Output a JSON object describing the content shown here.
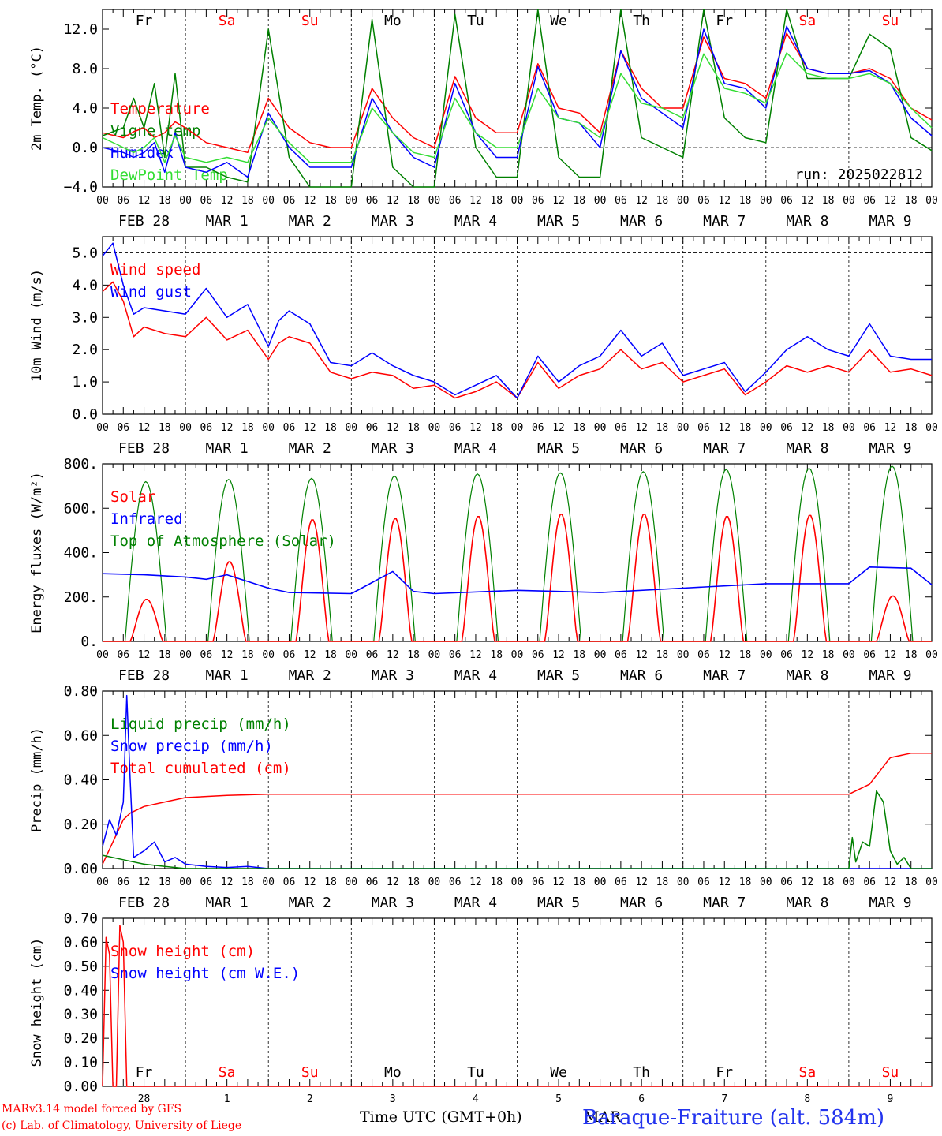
{
  "colors": {
    "red": "#ff0000",
    "blue": "#0000ff",
    "green": "#008000",
    "lightgreen": "#33dd33",
    "black": "#000000"
  },
  "x_axis": {
    "hour_ticks": [
      "00",
      "06",
      "12",
      "18"
    ],
    "date_labels": [
      "FEB 28",
      "MAR  1",
      "MAR  2",
      "MAR  3",
      "MAR  4",
      "MAR  5",
      "MAR  6",
      "MAR  7",
      "MAR  8",
      "MAR  9"
    ],
    "last_tick": "00",
    "days_of_week": [
      "Fr",
      "Sa",
      "Su",
      "Mo",
      "Tu",
      "We",
      "Th",
      "Fr",
      "Sa",
      "Su"
    ],
    "weekend_flags": [
      false,
      true,
      true,
      false,
      false,
      false,
      false,
      false,
      true,
      true
    ],
    "bottom_day_numbers": [
      "28",
      "1",
      "2",
      "3",
      "4",
      "5",
      "6",
      "7",
      "8",
      "9"
    ],
    "xlabel": "Time UTC (GMT+0h)",
    "xlabel_overlap": "MAR"
  },
  "footer": {
    "model": "MARv3.14 model forced by GFS",
    "lab": "(c) Lab. of Climatology, University of Liege",
    "station": "Baraque-Fraiture (alt. 584m)"
  },
  "chart_data": [
    {
      "type": "line",
      "ylabel": "2m Temp. (°C)",
      "ylim": [
        -4,
        14
      ],
      "yticks": [
        "−4.0",
        "0.0",
        "4.0",
        "8.0",
        "12.0"
      ],
      "ytick_values": [
        -4,
        0,
        4,
        8,
        12
      ],
      "dashed_y": [
        0
      ],
      "annotation": "run: 2025022812",
      "legend": [
        {
          "label": "Temperature",
          "color": "#ff0000"
        },
        {
          "label": "Vigne temp",
          "color": "#008000"
        },
        {
          "label": "Humidex",
          "color": "#0000ff"
        },
        {
          "label": "DewPoint Temp",
          "color": "#33dd33"
        }
      ],
      "x_hours": [
        0,
        6,
        9,
        12,
        15,
        18,
        21,
        24,
        30,
        36,
        42,
        48,
        54,
        60,
        66,
        72,
        78,
        84,
        90,
        96,
        102,
        108,
        114,
        120,
        126,
        132,
        138,
        144,
        150,
        156,
        162,
        168,
        174,
        180,
        186,
        192,
        198,
        204,
        210,
        216,
        222,
        228,
        234,
        240
      ],
      "series": [
        {
          "name": "Temperature",
          "color": "#ff0000",
          "values": [
            1.5,
            1.0,
            1.6,
            2.0,
            1.0,
            1.5,
            2.6,
            2.0,
            0.5,
            0.0,
            -0.5,
            5.0,
            2.0,
            0.5,
            0.0,
            0.0,
            6.0,
            3.0,
            1.0,
            0.0,
            7.2,
            3.0,
            1.5,
            1.5,
            8.5,
            4.0,
            3.5,
            1.5,
            9.8,
            6.0,
            4.0,
            4.0,
            11.2,
            7.0,
            6.5,
            5.0,
            11.6,
            8.0,
            7.5,
            7.5,
            8.0,
            7.0,
            4.0,
            2.8
          ]
        },
        {
          "name": "Vigne temp",
          "color": "#008000",
          "values": [
            1.2,
            2.0,
            5.0,
            2.0,
            6.5,
            -1.0,
            7.5,
            -2.0,
            -2.0,
            -3.0,
            -3.5,
            12.0,
            -1.0,
            -4.0,
            -4.0,
            -4.0,
            13.0,
            -2.0,
            -4.0,
            -4.0,
            13.5,
            0.0,
            -3.0,
            -3.0,
            14.0,
            -1.0,
            -3.0,
            -3.0,
            14.0,
            1.0,
            0.0,
            -1.0,
            14.0,
            3.0,
            1.0,
            0.5,
            14.0,
            7.0,
            7.0,
            7.0,
            11.5,
            10.0,
            1.0,
            -0.3
          ]
        },
        {
          "name": "Humidex",
          "color": "#0000ff",
          "values": [
            0.0,
            -0.5,
            -1.0,
            -0.5,
            0.5,
            -2.5,
            1.5,
            -2.0,
            -2.5,
            -1.5,
            -3.0,
            3.5,
            0.0,
            -2.0,
            -2.0,
            -2.0,
            5.0,
            1.5,
            -1.0,
            -2.0,
            6.5,
            1.5,
            -1.0,
            -1.0,
            8.2,
            3.0,
            2.5,
            0.0,
            9.8,
            5.0,
            3.5,
            2.0,
            12.0,
            6.5,
            6.0,
            4.0,
            12.3,
            8.0,
            7.5,
            7.5,
            7.8,
            6.5,
            3.0,
            1.2
          ]
        },
        {
          "name": "DewPoint Temp",
          "color": "#33dd33",
          "values": [
            1.0,
            0.0,
            -0.5,
            0.0,
            1.0,
            -1.5,
            1.2,
            -1.0,
            -1.5,
            -1.0,
            -1.5,
            3.0,
            0.5,
            -1.5,
            -1.5,
            -1.5,
            4.0,
            1.5,
            -0.5,
            -1.0,
            5.0,
            1.5,
            0.0,
            0.0,
            6.0,
            3.0,
            2.5,
            1.0,
            7.5,
            4.5,
            4.0,
            3.0,
            9.5,
            6.0,
            5.5,
            4.5,
            9.6,
            7.5,
            7.0,
            7.0,
            7.5,
            6.5,
            4.0,
            2.0
          ]
        }
      ]
    },
    {
      "type": "line",
      "ylabel": "10m Wind (m/s)",
      "ylim": [
        0,
        5.5
      ],
      "yticks": [
        "0.0",
        "1.0",
        "2.0",
        "3.0",
        "4.0",
        "5.0"
      ],
      "ytick_values": [
        0,
        1,
        2,
        3,
        4,
        5
      ],
      "dashed_y": [
        5
      ],
      "legend": [
        {
          "label": "Wind speed",
          "color": "#ff0000"
        },
        {
          "label": "Wind gust",
          "color": "#0000ff"
        }
      ],
      "x_hours": [
        0,
        3,
        6,
        9,
        12,
        18,
        24,
        30,
        36,
        42,
        48,
        51,
        54,
        60,
        66,
        72,
        78,
        84,
        90,
        96,
        102,
        108,
        114,
        120,
        126,
        132,
        138,
        144,
        150,
        156,
        162,
        168,
        174,
        180,
        186,
        192,
        198,
        204,
        210,
        216,
        222,
        228,
        234,
        240
      ],
      "series": [
        {
          "name": "Wind speed",
          "color": "#ff0000",
          "values": [
            3.8,
            4.1,
            3.5,
            2.4,
            2.7,
            2.5,
            2.4,
            3.0,
            2.3,
            2.6,
            1.7,
            2.2,
            2.4,
            2.2,
            1.3,
            1.1,
            1.3,
            1.2,
            0.8,
            0.9,
            0.5,
            0.7,
            1.0,
            0.5,
            1.6,
            0.8,
            1.2,
            1.4,
            2.0,
            1.4,
            1.6,
            1.0,
            1.2,
            1.4,
            0.6,
            1.0,
            1.5,
            1.3,
            1.5,
            1.3,
            2.0,
            1.3,
            1.4,
            1.2
          ]
        },
        {
          "name": "Wind gust",
          "color": "#0000ff",
          "values": [
            4.9,
            5.3,
            4.0,
            3.1,
            3.3,
            3.2,
            3.1,
            3.9,
            3.0,
            3.4,
            2.1,
            2.9,
            3.2,
            2.8,
            1.6,
            1.5,
            1.9,
            1.5,
            1.2,
            1.0,
            0.6,
            0.9,
            1.2,
            0.5,
            1.8,
            1.0,
            1.5,
            1.8,
            2.6,
            1.8,
            2.2,
            1.2,
            1.4,
            1.6,
            0.7,
            1.3,
            2.0,
            2.4,
            2.0,
            1.8,
            2.8,
            1.8,
            1.7,
            1.7
          ]
        }
      ]
    },
    {
      "type": "line",
      "ylabel": "Energy fluxes (W/m²)",
      "ylim": [
        0,
        800
      ],
      "yticks": [
        "0.",
        "200.",
        "400.",
        "600.",
        "800."
      ],
      "ytick_values": [
        0,
        200,
        400,
        600,
        800
      ],
      "dashed_y": [],
      "legend": [
        {
          "label": "Solar",
          "color": "#ff0000"
        },
        {
          "label": "Infrared",
          "color": "#0000ff"
        },
        {
          "label": "Top of Atmosphere (Solar)",
          "color": "#008000"
        }
      ],
      "daylight": {
        "toa_peaks": [
          720,
          730,
          735,
          745,
          755,
          760,
          765,
          775,
          780,
          790
        ],
        "solar_peaks": [
          190,
          360,
          550,
          555,
          565,
          575,
          575,
          565,
          570,
          205
        ],
        "sunrise_hour": 6.5,
        "sunset_hour": 18.5
      },
      "infrared": {
        "x_hours": [
          0,
          12,
          24,
          30,
          36,
          48,
          54,
          72,
          84,
          90,
          96,
          120,
          144,
          168,
          192,
          216,
          222,
          234,
          240
        ],
        "values": [
          305,
          300,
          290,
          280,
          300,
          240,
          220,
          215,
          315,
          225,
          215,
          230,
          220,
          240,
          260,
          260,
          335,
          330,
          255
        ]
      }
    },
    {
      "type": "line",
      "ylabel": "Precip (mm/h)",
      "ylim": [
        0,
        0.8
      ],
      "yticks": [
        "0.00",
        "0.20",
        "0.40",
        "0.60",
        "0.80"
      ],
      "ytick_values": [
        0,
        0.2,
        0.4,
        0.6,
        0.8
      ],
      "dashed_y": [],
      "legend": [
        {
          "label": "Liquid precip (mm/h)",
          "color": "#008000"
        },
        {
          "label": "Snow precip (mm/h)",
          "color": "#0000ff"
        },
        {
          "label": "Total cumulated (cm)",
          "color": "#ff0000"
        }
      ],
      "series": [
        {
          "name": "Total cumulated (cm)",
          "color": "#ff0000",
          "x_hours": [
            0,
            3,
            6,
            8,
            12,
            18,
            24,
            36,
            48,
            72,
            216,
            222,
            228,
            234,
            240
          ],
          "values": [
            0.02,
            0.12,
            0.22,
            0.25,
            0.28,
            0.3,
            0.32,
            0.33,
            0.335,
            0.335,
            0.335,
            0.38,
            0.5,
            0.52,
            0.52
          ]
        },
        {
          "name": "Snow precip (mm/h)",
          "color": "#0000ff",
          "x_hours": [
            0,
            2,
            4,
            6,
            7,
            8,
            9,
            10,
            12,
            15,
            18,
            21,
            24,
            30,
            36,
            42,
            48,
            54,
            240
          ],
          "values": [
            0.1,
            0.22,
            0.15,
            0.3,
            0.78,
            0.4,
            0.05,
            0.06,
            0.08,
            0.12,
            0.03,
            0.05,
            0.02,
            0.01,
            0.005,
            0.01,
            0.0,
            0.0,
            0.0
          ]
        },
        {
          "name": "Liquid precip (mm/h)",
          "color": "#008000",
          "x_hours": [
            0,
            6,
            12,
            18,
            24,
            216,
            217,
            218,
            220,
            222,
            224,
            226,
            228,
            230,
            232,
            234,
            240
          ],
          "values": [
            0.06,
            0.04,
            0.02,
            0.01,
            0.0,
            0.0,
            0.14,
            0.03,
            0.12,
            0.1,
            0.35,
            0.3,
            0.08,
            0.02,
            0.05,
            0.0,
            0.0
          ]
        }
      ]
    },
    {
      "type": "line",
      "ylabel": "Snow height (cm)",
      "ylim": [
        0,
        0.7
      ],
      "yticks": [
        "0.00",
        "0.10",
        "0.20",
        "0.30",
        "0.40",
        "0.50",
        "0.60",
        "0.70"
      ],
      "ytick_values": [
        0,
        0.1,
        0.2,
        0.3,
        0.4,
        0.5,
        0.6,
        0.7
      ],
      "dashed_y": [],
      "legend": [
        {
          "label": "Snow height (cm)",
          "color": "#ff0000"
        },
        {
          "label": "Snow height (cm W.E.)",
          "color": "#0000ff"
        }
      ],
      "series": [
        {
          "name": "Snow height (cm)",
          "color": "#ff0000",
          "x_hours": [
            0,
            1,
            2,
            3,
            4,
            5,
            6,
            7,
            8,
            240
          ],
          "values": [
            0.0,
            0.62,
            0.55,
            0.0,
            0.0,
            0.67,
            0.6,
            0.0,
            0.0,
            0.0
          ]
        }
      ]
    }
  ]
}
